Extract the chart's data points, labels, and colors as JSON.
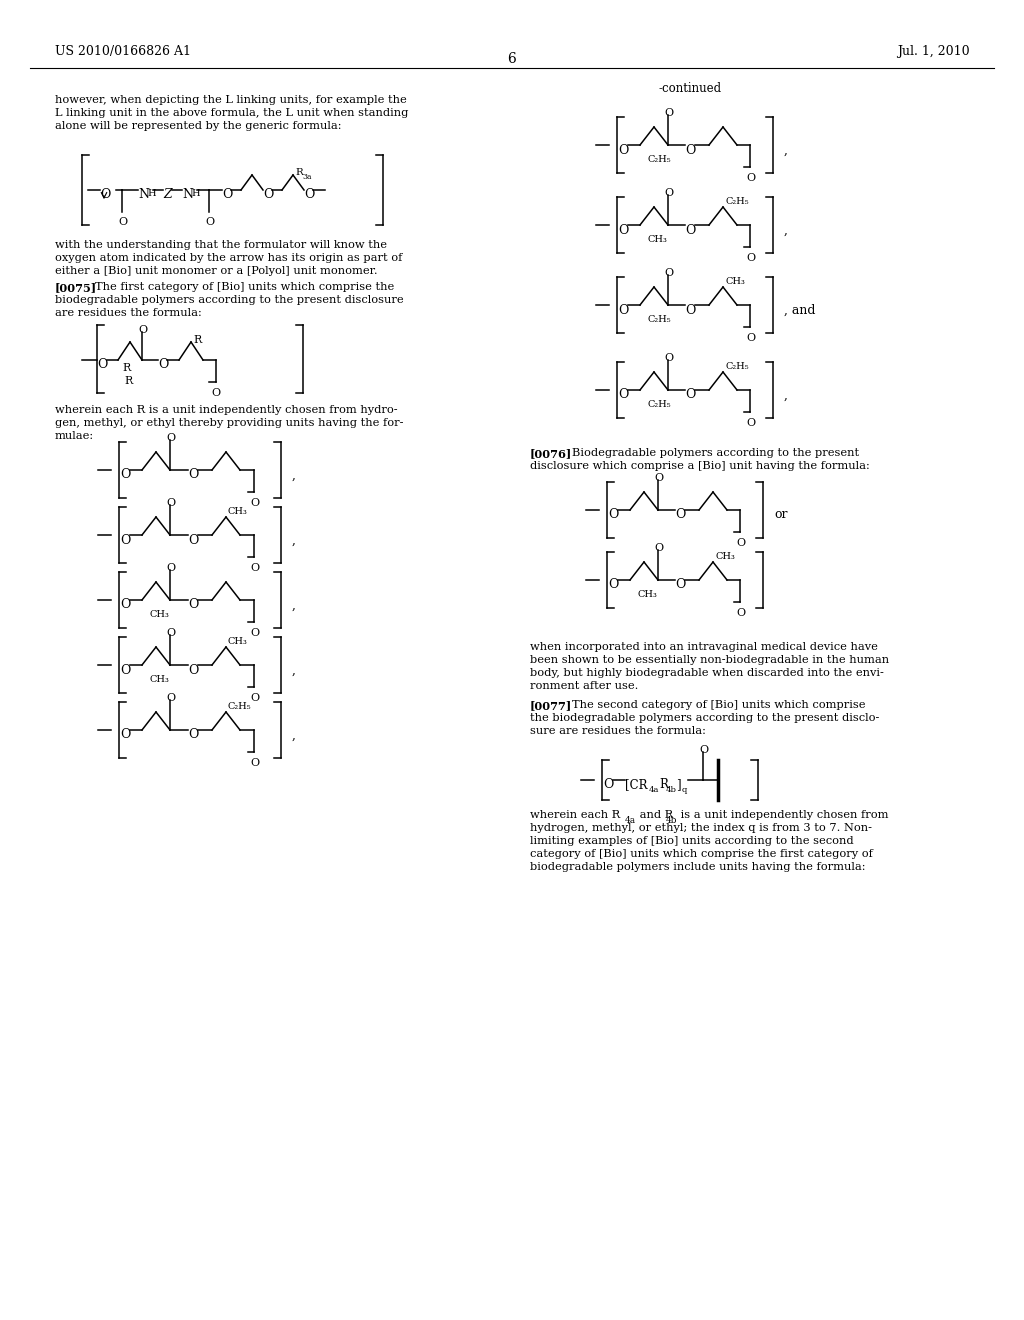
{
  "background_color": "#ffffff",
  "header_left": "US 2010/0166826 A1",
  "header_right": "Jul. 1, 2010",
  "page_number": "6",
  "continued_label": "-continued"
}
